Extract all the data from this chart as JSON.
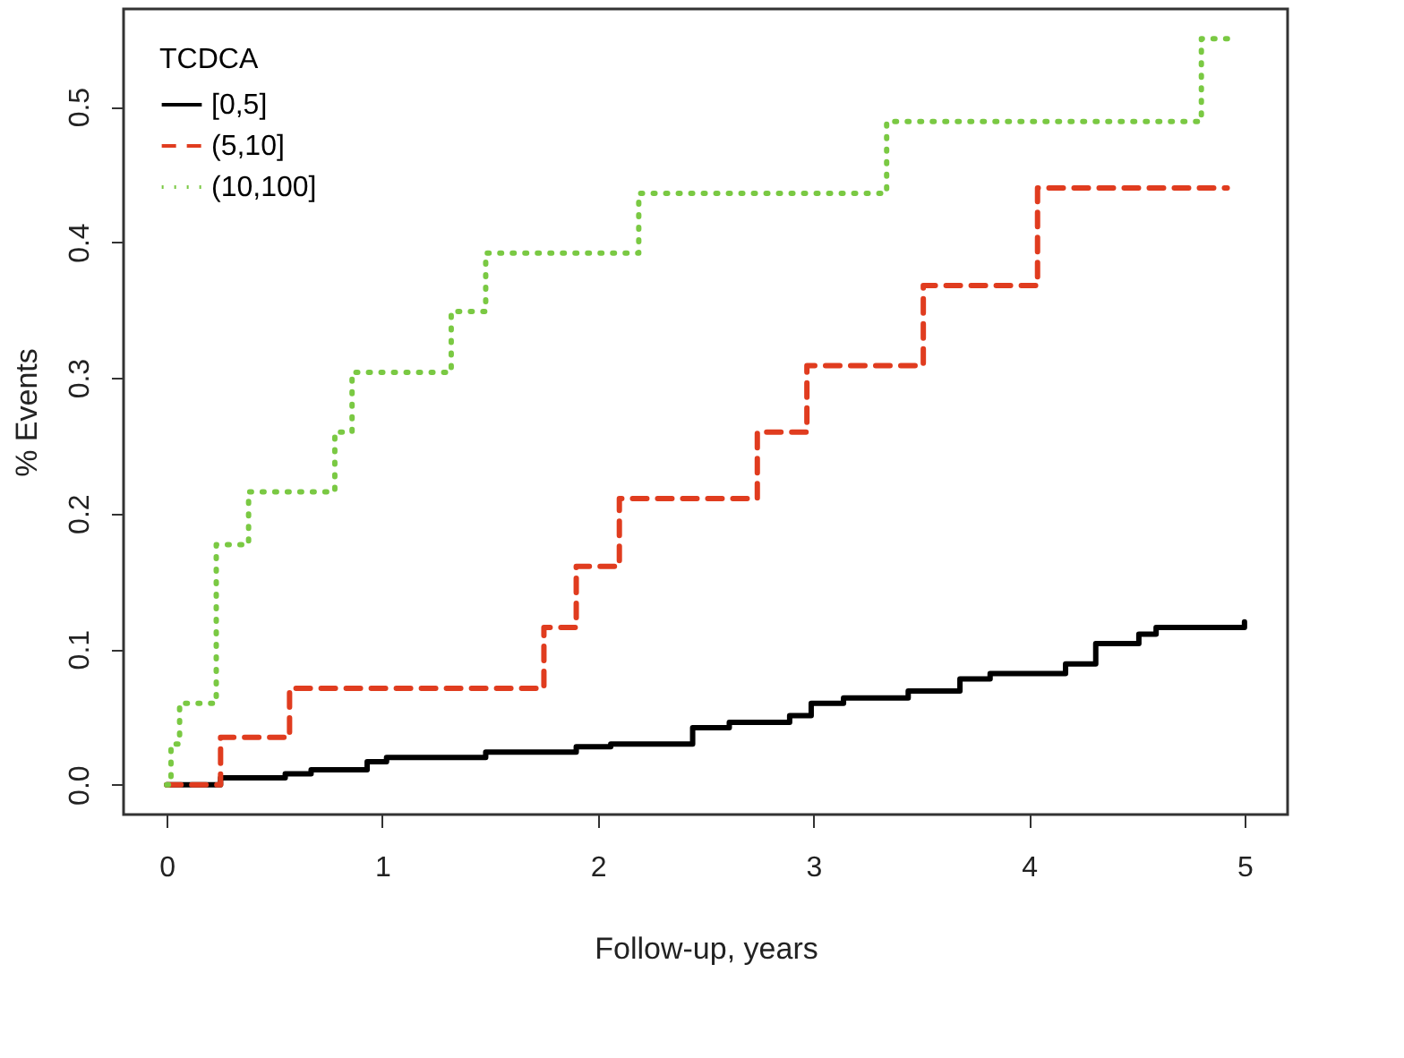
{
  "chart_data": {
    "type": "step",
    "xlabel": "Follow-up, years",
    "ylabel": "% Events",
    "legend_title": "TCDCA",
    "legend": "top left",
    "grid": false,
    "xlim": [
      -0.2,
      5.2
    ],
    "xticks": [
      0,
      1,
      2,
      3,
      4,
      5
    ],
    "ylim": [
      -0.022,
      0.572
    ],
    "yticks": [
      {
        "value": 0,
        "label": "0.0"
      },
      {
        "value": 0.1,
        "label": "0.1"
      },
      {
        "value": 0.2,
        "label": "0.2"
      },
      {
        "value": 0.3,
        "label": "0.3"
      },
      {
        "value": 0.4,
        "label": "0.4"
      },
      {
        "value": 0.5,
        "label": "0.5"
      }
    ],
    "series": [
      {
        "name": "[0,5]",
        "color": "#000000",
        "line_style": "solid",
        "x": [
          0,
          0.25,
          0.55,
          0.67,
          0.93,
          1.02,
          1.48,
          1.9,
          2.06,
          2.44,
          2.61,
          2.89,
          2.99,
          3.14,
          3.44,
          3.68,
          3.82,
          4.17,
          4.31,
          4.51,
          4.59,
          5.0
        ],
        "values": [
          0,
          0.005,
          0.008,
          0.011,
          0.017,
          0.02,
          0.024,
          0.028,
          0.03,
          0.042,
          0.046,
          0.051,
          0.06,
          0.064,
          0.069,
          0.078,
          0.082,
          0.089,
          0.104,
          0.111,
          0.116,
          0.12
        ]
      },
      {
        "name": "(5,10]",
        "color": "#e03c1f",
        "line_style": "dashed",
        "x": [
          0,
          0.25,
          0.57,
          1.75,
          1.9,
          2.1,
          2.74,
          2.97,
          3.51,
          4.04,
          4.92
        ],
        "values": [
          0,
          0.035,
          0.071,
          0.116,
          0.161,
          0.211,
          0.26,
          0.309,
          0.368,
          0.44,
          0.44
        ]
      },
      {
        "name": "(10,100]",
        "color": "#7ac943",
        "line_style": "dotted",
        "x": [
          0,
          0.02,
          0.06,
          0.23,
          0.38,
          0.78,
          0.86,
          1.32,
          1.48,
          2.19,
          3.34,
          4.8,
          4.95
        ],
        "values": [
          0,
          0.03,
          0.06,
          0.177,
          0.216,
          0.26,
          0.304,
          0.349,
          0.392,
          0.436,
          0.489,
          0.55,
          0.55
        ]
      }
    ]
  }
}
